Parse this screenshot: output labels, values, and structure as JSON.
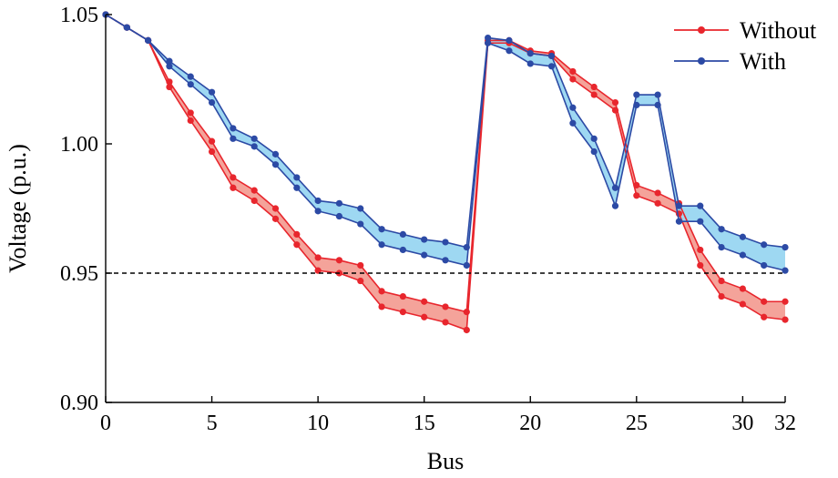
{
  "chart_data": {
    "type": "line",
    "xlabel": "Bus",
    "ylabel": "Voltage (p.u.)",
    "xlim": [
      0,
      32
    ],
    "ylim": [
      0.9,
      1.05
    ],
    "x_ticks": [
      0,
      5,
      10,
      15,
      20,
      25,
      30,
      32
    ],
    "x_tick_labels": [
      "0",
      "5",
      "10",
      "15",
      "20",
      "25",
      "30",
      "32"
    ],
    "y_ticks": [
      0.9,
      0.95,
      1.0,
      1.05
    ],
    "y_tick_labels": [
      "0.90",
      "0.95",
      "1.00",
      "1.05"
    ],
    "grid": false,
    "legend_position": "top-right",
    "reference_line": {
      "y": 0.95,
      "style": "dashed",
      "color": "#000000"
    },
    "x": [
      0,
      1,
      2,
      3,
      4,
      5,
      6,
      7,
      8,
      9,
      10,
      11,
      12,
      13,
      14,
      15,
      16,
      17,
      18,
      19,
      20,
      21,
      22,
      23,
      24,
      25,
      26,
      27,
      28,
      29,
      30,
      31,
      32
    ],
    "series": [
      {
        "name": "Without",
        "color": "#e8262d",
        "fill": "#f4a39a",
        "upper": [
          1.05,
          1.045,
          1.04,
          1.024,
          1.012,
          1.001,
          0.987,
          0.982,
          0.975,
          0.965,
          0.956,
          0.955,
          0.953,
          0.943,
          0.941,
          0.939,
          0.937,
          0.935,
          1.04,
          1.04,
          1.036,
          1.035,
          1.028,
          1.022,
          1.016,
          0.984,
          0.981,
          0.977,
          0.959,
          0.947,
          0.944,
          0.939,
          0.939
        ],
        "lower": [
          1.05,
          1.045,
          1.04,
          1.022,
          1.009,
          0.997,
          0.983,
          0.978,
          0.971,
          0.961,
          0.951,
          0.95,
          0.947,
          0.937,
          0.935,
          0.933,
          0.931,
          0.928,
          1.039,
          1.039,
          1.035,
          1.034,
          1.025,
          1.019,
          1.013,
          0.98,
          0.977,
          0.973,
          0.953,
          0.941,
          0.938,
          0.933,
          0.932
        ]
      },
      {
        "name": "With",
        "color": "#2c4aa5",
        "fill": "#9ed8f2",
        "upper": [
          1.05,
          1.045,
          1.04,
          1.032,
          1.026,
          1.02,
          1.006,
          1.002,
          0.996,
          0.987,
          0.978,
          0.977,
          0.975,
          0.967,
          0.965,
          0.963,
          0.962,
          0.96,
          1.041,
          1.04,
          1.035,
          1.034,
          1.014,
          1.002,
          0.983,
          1.019,
          1.019,
          0.976,
          0.976,
          0.967,
          0.964,
          0.961,
          0.96
        ],
        "lower": [
          1.05,
          1.045,
          1.04,
          1.03,
          1.023,
          1.016,
          1.002,
          0.999,
          0.992,
          0.983,
          0.974,
          0.972,
          0.969,
          0.961,
          0.959,
          0.957,
          0.955,
          0.953,
          1.039,
          1.036,
          1.031,
          1.03,
          1.008,
          0.997,
          0.976,
          1.015,
          1.015,
          0.97,
          0.97,
          0.96,
          0.957,
          0.953,
          0.951
        ]
      }
    ]
  }
}
